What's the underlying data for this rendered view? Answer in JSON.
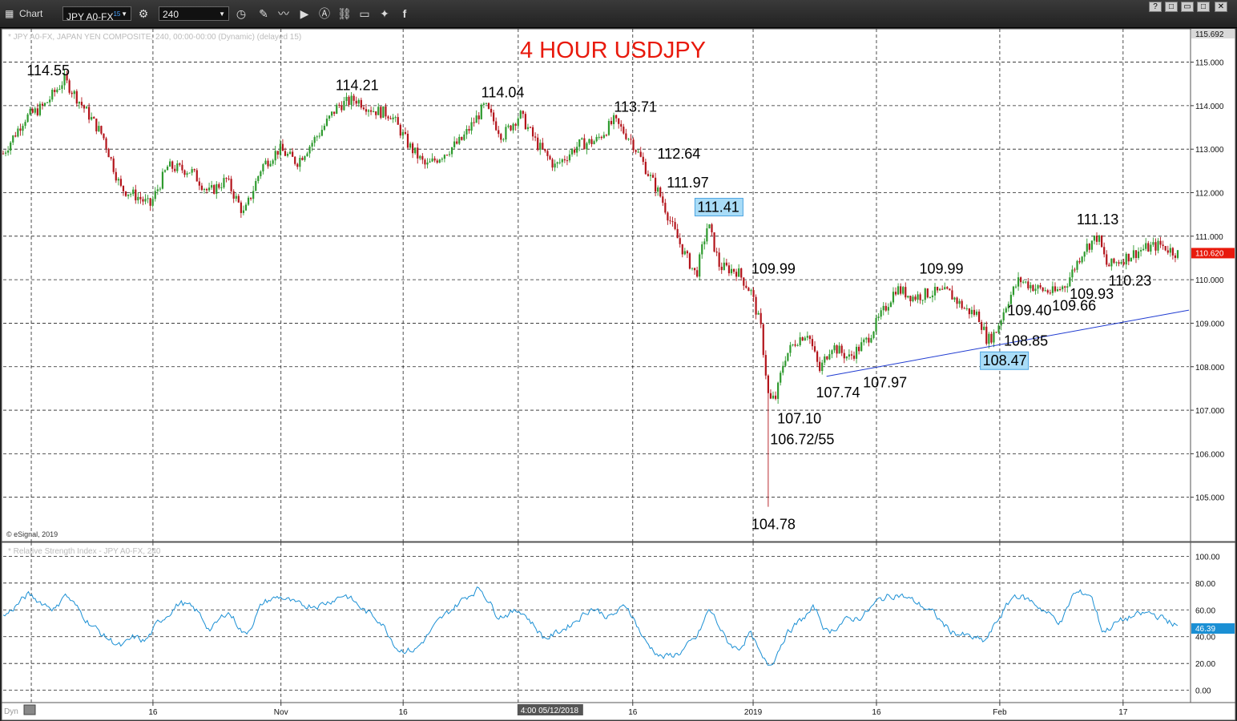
{
  "toolbar": {
    "app_label": "Chart",
    "symbol": "JPY A0-FX",
    "symbol_superscript": "15",
    "interval": "240"
  },
  "window_buttons": [
    "?",
    "□",
    "▭",
    "✕"
  ],
  "chart_data": [
    {
      "type": "candlestick",
      "title": "4 HOUR USDJPY",
      "subtitle": "* JPY A0-FX, JAPAN YEN COMPOSITE, 240, 00:00-00:00 (Dynamic) (delayed 15)",
      "copyright": "© eSignal, 2019",
      "ylim": [
        104.0,
        115.692
      ],
      "y_ticks": [
        "115.000",
        "114.000",
        "113.000",
        "112.000",
        "111.000",
        "110.000",
        "109.000",
        "108.000",
        "107.000",
        "106.000",
        "105.000"
      ],
      "y_top_label": "115.692",
      "last_price": "110.620",
      "last_price_color": "#e8190c",
      "up_color": "#2e9a2e",
      "down_color": "#b3141b",
      "annotations": [
        {
          "text": "114.55",
          "x": 0.02,
          "y": 114.55
        },
        {
          "text": "114.21",
          "x": 0.283,
          "y": 114.21
        },
        {
          "text": "114.04",
          "x": 0.407,
          "y": 114.04
        },
        {
          "text": "113.71",
          "x": 0.52,
          "y": 113.71
        },
        {
          "text": "112.64",
          "x": 0.557,
          "y": 112.64
        },
        {
          "text": "111.97",
          "x": 0.565,
          "y": 111.97
        },
        {
          "text": "111.41",
          "x": 0.591,
          "y": 111.41,
          "highlight": true
        },
        {
          "text": "109.99",
          "x": 0.637,
          "y": 109.99
        },
        {
          "text": "107.10",
          "x": 0.659,
          "y": 107.1
        },
        {
          "text": "106.72/55",
          "x": 0.653,
          "y": 106.62
        },
        {
          "text": "104.78",
          "x": 0.637,
          "y": 104.78
        },
        {
          "text": "107.74",
          "x": 0.692,
          "y": 107.74
        },
        {
          "text": "107.97",
          "x": 0.732,
          "y": 107.97
        },
        {
          "text": "109.99",
          "x": 0.78,
          "y": 109.99
        },
        {
          "text": "109.40",
          "x": 0.855,
          "y": 109.4
        },
        {
          "text": "108.85",
          "x": 0.852,
          "y": 108.85
        },
        {
          "text": "108.47",
          "x": 0.834,
          "y": 108.47,
          "highlight": true
        },
        {
          "text": "109.66",
          "x": 0.893,
          "y": 109.66
        },
        {
          "text": "109.93",
          "x": 0.908,
          "y": 109.93
        },
        {
          "text": "111.13",
          "x": 0.914,
          "y": 111.13
        },
        {
          "text": "110.23",
          "x": 0.941,
          "y": 110.23
        }
      ],
      "trendline": {
        "x1": 0.701,
        "y1": 107.78,
        "x2": 1.0,
        "y2": 109.3,
        "color": "#1f3bd1"
      },
      "anchors": [
        [
          0.0,
          112.9
        ],
        [
          0.018,
          113.7
        ],
        [
          0.035,
          114.0
        ],
        [
          0.052,
          114.6
        ],
        [
          0.07,
          113.9
        ],
        [
          0.085,
          113.3
        ],
        [
          0.1,
          112.1
        ],
        [
          0.115,
          111.9
        ],
        [
          0.125,
          111.7
        ],
        [
          0.14,
          112.6
        ],
        [
          0.16,
          112.5
        ],
        [
          0.175,
          112.0
        ],
        [
          0.19,
          112.3
        ],
        [
          0.205,
          111.5
        ],
        [
          0.22,
          112.6
        ],
        [
          0.235,
          113.0
        ],
        [
          0.25,
          112.7
        ],
        [
          0.27,
          113.4
        ],
        [
          0.285,
          114.0
        ],
        [
          0.3,
          114.15
        ],
        [
          0.315,
          113.9
        ],
        [
          0.33,
          113.8
        ],
        [
          0.345,
          113.1
        ],
        [
          0.36,
          112.6
        ],
        [
          0.375,
          112.9
        ],
        [
          0.39,
          113.2
        ],
        [
          0.41,
          114.0
        ],
        [
          0.425,
          113.3
        ],
        [
          0.44,
          113.8
        ],
        [
          0.455,
          113.1
        ],
        [
          0.47,
          112.6
        ],
        [
          0.49,
          113.1
        ],
        [
          0.505,
          113.2
        ],
        [
          0.52,
          113.65
        ],
        [
          0.535,
          113.2
        ],
        [
          0.55,
          112.4
        ],
        [
          0.56,
          111.9
        ],
        [
          0.57,
          111.2
        ],
        [
          0.58,
          110.6
        ],
        [
          0.59,
          110.1
        ],
        [
          0.6,
          111.3
        ],
        [
          0.61,
          110.3
        ],
        [
          0.625,
          110.2
        ],
        [
          0.637,
          109.7
        ],
        [
          0.645,
          108.9
        ],
        [
          0.652,
          107.2
        ],
        [
          0.658,
          107.3
        ],
        [
          0.665,
          108.2
        ],
        [
          0.675,
          108.6
        ],
        [
          0.685,
          108.8
        ],
        [
          0.695,
          107.9
        ],
        [
          0.705,
          108.5
        ],
        [
          0.72,
          108.2
        ],
        [
          0.735,
          108.6
        ],
        [
          0.75,
          109.3
        ],
        [
          0.76,
          109.8
        ],
        [
          0.775,
          109.6
        ],
        [
          0.79,
          109.7
        ],
        [
          0.805,
          109.7
        ],
        [
          0.82,
          109.3
        ],
        [
          0.83,
          109.2
        ],
        [
          0.838,
          108.6
        ],
        [
          0.845,
          108.8
        ],
        [
          0.855,
          109.5
        ],
        [
          0.865,
          110.0
        ],
        [
          0.88,
          109.8
        ],
        [
          0.895,
          109.7
        ],
        [
          0.905,
          109.9
        ],
        [
          0.92,
          110.7
        ],
        [
          0.932,
          111.0
        ],
        [
          0.94,
          110.3
        ],
        [
          0.955,
          110.5
        ],
        [
          0.97,
          110.7
        ],
        [
          0.985,
          110.8
        ],
        [
          1.0,
          110.6
        ]
      ],
      "spike_low": {
        "x": 0.652,
        "y": 104.78
      },
      "x_tick_labels": [
        {
          "label": "16",
          "x": 0.1275
        },
        {
          "label": "Nov",
          "x": 0.2365
        },
        {
          "label": "16",
          "x": 0.3405
        },
        {
          "label": "16",
          "x": 0.536
        },
        {
          "label": "2019",
          "x": 0.6385
        },
        {
          "label": "16",
          "x": 0.7435
        },
        {
          "label": "Feb",
          "x": 0.8485
        },
        {
          "label": "17",
          "x": 0.9535
        }
      ],
      "date_flag": "4:00 05/12/2018",
      "date_flag_x": 0.4385,
      "x_gridlines": [
        0.0239,
        0.1275,
        0.2365,
        0.3405,
        0.4385,
        0.536,
        0.6385,
        0.7435,
        0.8485,
        0.9535
      ],
      "corner_label": "Dyn"
    },
    {
      "type": "line",
      "title": "* Relative Strength Index - JPY A0-FX, 240",
      "ylim": [
        -8,
        108
      ],
      "y_ticks": [
        "100.00",
        "80.00",
        "60.00",
        "40.00",
        "20.00",
        "0.00"
      ],
      "last_value": "46.39",
      "color": "#1a8fd4",
      "anchors": [
        [
          0.0,
          55
        ],
        [
          0.02,
          72
        ],
        [
          0.03,
          66
        ],
        [
          0.045,
          60
        ],
        [
          0.05,
          74
        ],
        [
          0.07,
          52
        ],
        [
          0.085,
          40
        ],
        [
          0.1,
          32
        ],
        [
          0.11,
          40
        ],
        [
          0.12,
          36
        ],
        [
          0.13,
          50
        ],
        [
          0.15,
          66
        ],
        [
          0.165,
          58
        ],
        [
          0.175,
          44
        ],
        [
          0.19,
          60
        ],
        [
          0.205,
          40
        ],
        [
          0.22,
          66
        ],
        [
          0.235,
          70
        ],
        [
          0.25,
          63
        ],
        [
          0.27,
          64
        ],
        [
          0.29,
          72
        ],
        [
          0.305,
          60
        ],
        [
          0.32,
          52
        ],
        [
          0.335,
          30
        ],
        [
          0.35,
          30
        ],
        [
          0.37,
          52
        ],
        [
          0.39,
          68
        ],
        [
          0.405,
          77
        ],
        [
          0.42,
          55
        ],
        [
          0.44,
          60
        ],
        [
          0.46,
          38
        ],
        [
          0.48,
          48
        ],
        [
          0.5,
          62
        ],
        [
          0.515,
          54
        ],
        [
          0.53,
          64
        ],
        [
          0.545,
          36
        ],
        [
          0.56,
          24
        ],
        [
          0.575,
          28
        ],
        [
          0.59,
          40
        ],
        [
          0.6,
          62
        ],
        [
          0.615,
          36
        ],
        [
          0.625,
          30
        ],
        [
          0.635,
          44
        ],
        [
          0.645,
          22
        ],
        [
          0.652,
          18
        ],
        [
          0.665,
          42
        ],
        [
          0.68,
          54
        ],
        [
          0.69,
          62
        ],
        [
          0.7,
          42
        ],
        [
          0.715,
          52
        ],
        [
          0.73,
          55
        ],
        [
          0.745,
          68
        ],
        [
          0.76,
          72
        ],
        [
          0.775,
          66
        ],
        [
          0.79,
          58
        ],
        [
          0.805,
          44
        ],
        [
          0.82,
          40
        ],
        [
          0.835,
          36
        ],
        [
          0.845,
          52
        ],
        [
          0.86,
          72
        ],
        [
          0.875,
          66
        ],
        [
          0.89,
          56
        ],
        [
          0.9,
          50
        ],
        [
          0.91,
          73
        ],
        [
          0.925,
          72
        ],
        [
          0.935,
          42
        ],
        [
          0.945,
          50
        ],
        [
          0.96,
          55
        ],
        [
          0.975,
          58
        ],
        [
          0.99,
          52
        ],
        [
          1.0,
          47
        ]
      ],
      "corner_label": "Dyn"
    }
  ]
}
